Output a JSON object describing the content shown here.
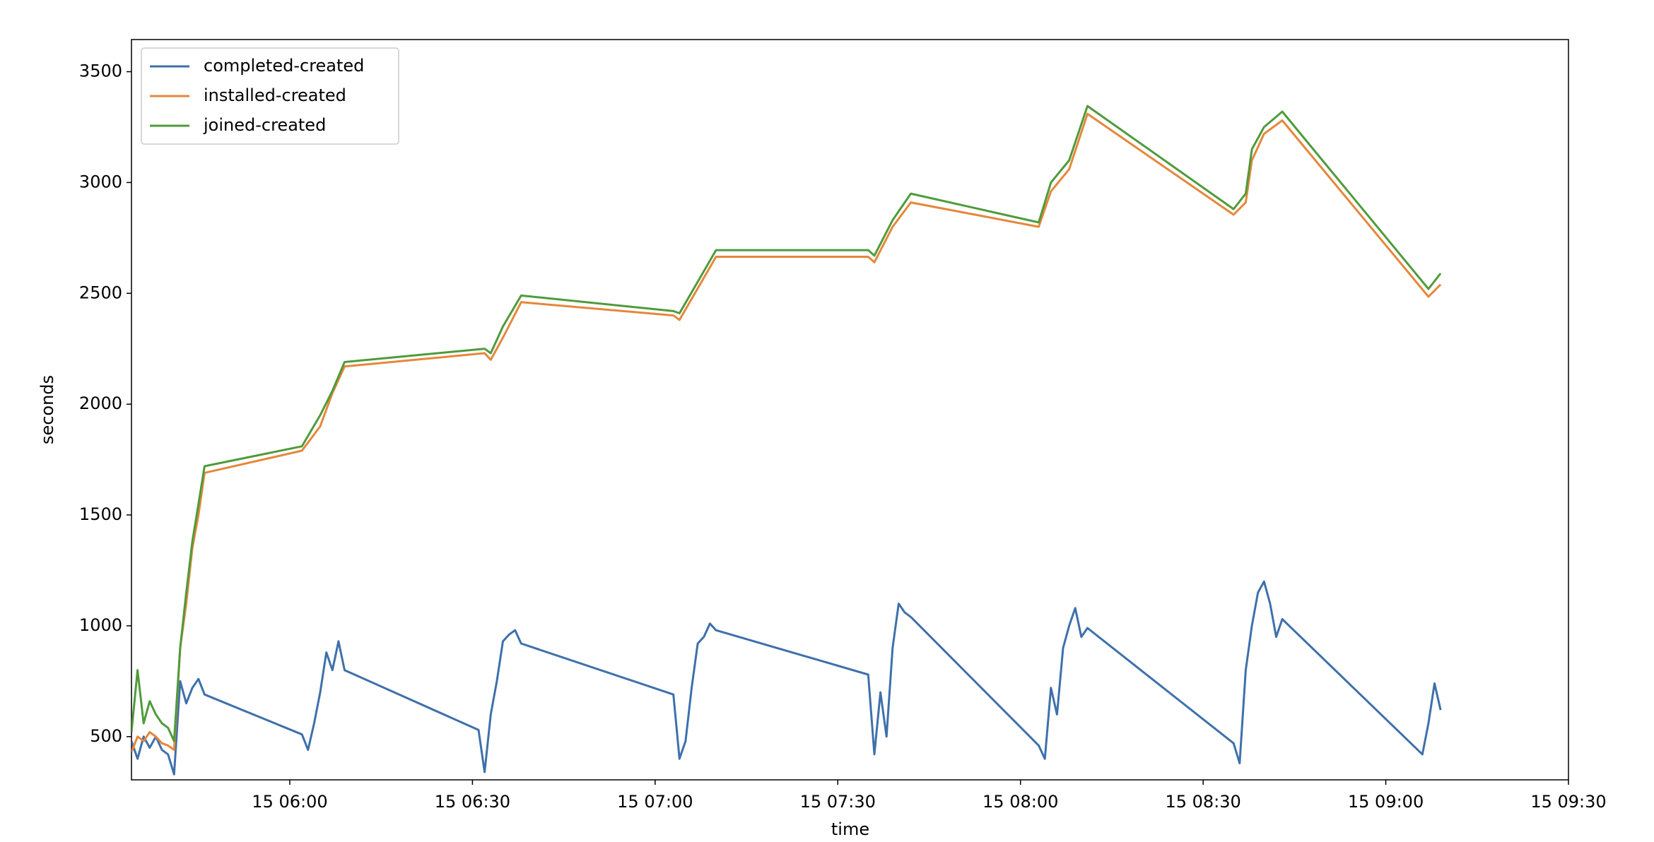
{
  "chart_data": {
    "type": "line",
    "x_label": "time",
    "y_label": "seconds",
    "legend": "upper left",
    "grid": false,
    "xlim": [
      "15 05:34",
      "15 09:30"
    ],
    "xticks": [
      "15 06:00",
      "15 06:30",
      "15 07:00",
      "15 07:30",
      "15 08:00",
      "15 08:30",
      "15 09:00",
      "15 09:30"
    ],
    "ylim": [
      305,
      3645
    ],
    "yticks": [
      500,
      1000,
      1500,
      2000,
      2500,
      3000,
      3500
    ],
    "series": [
      {
        "name": "completed-created",
        "color": "#3e70ab",
        "x": [
          "15 05:34",
          "15 05:35",
          "15 05:36",
          "15 05:37",
          "15 05:38",
          "15 05:39",
          "15 05:40",
          "15 05:41",
          "15 05:42",
          "15 05:43",
          "15 05:44",
          "15 05:45",
          "15 05:46",
          "15 06:02",
          "15 06:03",
          "15 06:04",
          "15 06:05",
          "15 06:06",
          "15 06:07",
          "15 06:08",
          "15 06:09",
          "15 06:31",
          "15 06:32",
          "15 06:33",
          "15 06:34",
          "15 06:35",
          "15 06:36",
          "15 06:37",
          "15 06:38",
          "15 07:03",
          "15 07:04",
          "15 07:05",
          "15 07:06",
          "15 07:07",
          "15 07:08",
          "15 07:09",
          "15 07:10",
          "15 07:35",
          "15 07:36",
          "15 07:37",
          "15 07:38",
          "15 07:39",
          "15 07:40",
          "15 07:41",
          "15 07:42",
          "15 08:03",
          "15 08:04",
          "15 08:05",
          "15 08:06",
          "15 08:07",
          "15 08:08",
          "15 08:09",
          "15 08:10",
          "15 08:11",
          "15 08:35",
          "15 08:36",
          "15 08:37",
          "15 08:38",
          "15 08:39",
          "15 08:40",
          "15 08:41",
          "15 08:42",
          "15 08:43",
          "15 09:06",
          "15 09:07",
          "15 09:08",
          "15 09:09"
        ],
        "values": [
          480,
          400,
          500,
          450,
          500,
          440,
          420,
          330,
          750,
          650,
          720,
          760,
          690,
          510,
          440,
          560,
          700,
          880,
          800,
          930,
          800,
          530,
          340,
          600,
          750,
          930,
          960,
          980,
          920,
          690,
          400,
          480,
          720,
          920,
          950,
          1010,
          980,
          780,
          420,
          700,
          500,
          900,
          1100,
          1060,
          1040,
          460,
          400,
          720,
          600,
          900,
          1000,
          1080,
          950,
          990,
          470,
          380,
          800,
          1000,
          1150,
          1200,
          1100,
          950,
          1030,
          420,
          560,
          740,
          620
        ]
      },
      {
        "name": "installed-created",
        "color": "#e5873b",
        "x": [
          "15 05:34",
          "15 05:35",
          "15 05:36",
          "15 05:37",
          "15 05:38",
          "15 05:39",
          "15 05:40",
          "15 05:41",
          "15 05:42",
          "15 05:43",
          "15 05:44",
          "15 05:45",
          "15 05:46",
          "15 06:02",
          "15 06:05",
          "15 06:07",
          "15 06:09",
          "15 06:32",
          "15 06:33",
          "15 06:35",
          "15 06:38",
          "15 07:03",
          "15 07:04",
          "15 07:08",
          "15 07:10",
          "15 07:35",
          "15 07:36",
          "15 07:39",
          "15 07:42",
          "15 08:03",
          "15 08:05",
          "15 08:08",
          "15 08:11",
          "15 08:35",
          "15 08:37",
          "15 08:38",
          "15 08:40",
          "15 08:43",
          "15 09:07",
          "15 09:09"
        ],
        "values": [
          430,
          500,
          480,
          520,
          500,
          470,
          460,
          440,
          900,
          1100,
          1350,
          1500,
          1690,
          1790,
          1900,
          2050,
          2170,
          2230,
          2200,
          2300,
          2460,
          2400,
          2380,
          2570,
          2665,
          2665,
          2640,
          2800,
          2910,
          2800,
          2960,
          3060,
          3310,
          2855,
          2910,
          3100,
          3220,
          3280,
          2485,
          2540
        ]
      },
      {
        "name": "joined-created",
        "color": "#4e9b3c",
        "x": [
          "15 05:34",
          "15 05:35",
          "15 05:36",
          "15 05:37",
          "15 05:38",
          "15 05:39",
          "15 05:40",
          "15 05:41",
          "15 05:42",
          "15 05:43",
          "15 05:44",
          "15 05:45",
          "15 05:46",
          "15 06:02",
          "15 06:05",
          "15 06:07",
          "15 06:09",
          "15 06:32",
          "15 06:33",
          "15 06:35",
          "15 06:38",
          "15 07:03",
          "15 07:04",
          "15 07:08",
          "15 07:10",
          "15 07:35",
          "15 07:36",
          "15 07:39",
          "15 07:42",
          "15 08:03",
          "15 08:05",
          "15 08:08",
          "15 08:11",
          "15 08:35",
          "15 08:37",
          "15 08:38",
          "15 08:40",
          "15 08:43",
          "15 09:07",
          "15 09:09"
        ],
        "values": [
          520,
          800,
          560,
          660,
          600,
          560,
          540,
          480,
          900,
          1150,
          1380,
          1550,
          1720,
          1810,
          1950,
          2060,
          2190,
          2250,
          2230,
          2350,
          2490,
          2420,
          2410,
          2600,
          2695,
          2695,
          2670,
          2830,
          2950,
          2820,
          3000,
          3100,
          3345,
          2880,
          2950,
          3150,
          3250,
          3320,
          2520,
          2590
        ]
      }
    ]
  }
}
